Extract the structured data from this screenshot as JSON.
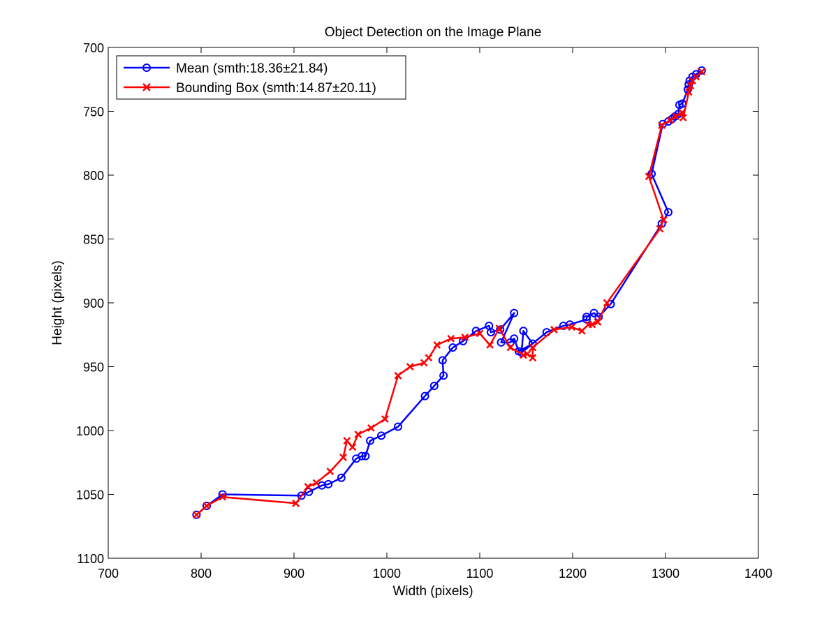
{
  "chart_data": {
    "type": "line",
    "title": "Object Detection on the Image Plane",
    "xlabel": "Width (pixels)",
    "ylabel": "Height (pixels)",
    "xlim": [
      700,
      1400
    ],
    "ylim": [
      700,
      1100
    ],
    "y_reversed": true,
    "xticks": [
      700,
      800,
      900,
      1000,
      1100,
      1200,
      1300,
      1400
    ],
    "yticks": [
      700,
      750,
      800,
      850,
      900,
      950,
      1000,
      1050,
      1100
    ],
    "grid": false,
    "legend_position": "top-left",
    "series": [
      {
        "name": "Mean (smth:18.36±21.84)",
        "color": "#0000ff",
        "marker": "circle",
        "points": [
          [
            795,
            1066
          ],
          [
            806,
            1059
          ],
          [
            823,
            1050
          ],
          [
            908,
            1051
          ],
          [
            916,
            1048
          ],
          [
            930,
            1043
          ],
          [
            937,
            1042
          ],
          [
            951,
            1037
          ],
          [
            967,
            1022
          ],
          [
            973,
            1020
          ],
          [
            977,
            1020
          ],
          [
            982,
            1008
          ],
          [
            994,
            1004
          ],
          [
            1012,
            997
          ],
          [
            1041,
            973
          ],
          [
            1051,
            965
          ],
          [
            1061,
            957
          ],
          [
            1060,
            945
          ],
          [
            1071,
            935
          ],
          [
            1082,
            930
          ],
          [
            1096,
            922
          ],
          [
            1110,
            918
          ],
          [
            1112,
            923
          ],
          [
            1122,
            921
          ],
          [
            1137,
            908
          ],
          [
            1123,
            931
          ],
          [
            1133,
            931
          ],
          [
            1137,
            928
          ],
          [
            1142,
            938
          ],
          [
            1157,
            932
          ],
          [
            1147,
            922
          ],
          [
            1145,
            939
          ],
          [
            1172,
            923
          ],
          [
            1190,
            918
          ],
          [
            1197,
            917
          ],
          [
            1215,
            913
          ],
          [
            1215,
            911
          ],
          [
            1223,
            908
          ],
          [
            1228,
            911
          ],
          [
            1241,
            901
          ],
          [
            1296,
            838
          ],
          [
            1303,
            829
          ],
          [
            1285,
            799
          ],
          [
            1297,
            760
          ],
          [
            1303,
            758
          ],
          [
            1307,
            756
          ],
          [
            1310,
            754
          ],
          [
            1314,
            752
          ],
          [
            1315,
            745
          ],
          [
            1318,
            744
          ],
          [
            1324,
            733
          ],
          [
            1325,
            729
          ],
          [
            1326,
            726
          ],
          [
            1329,
            723
          ],
          [
            1333,
            721
          ],
          [
            1339,
            718
          ]
        ]
      },
      {
        "name": "Bounding Box (smth:14.87±20.11)",
        "color": "#ff0000",
        "marker": "x",
        "points": [
          [
            795,
            1066
          ],
          [
            806,
            1059
          ],
          [
            823,
            1052
          ],
          [
            902,
            1057
          ],
          [
            915,
            1044
          ],
          [
            924,
            1041
          ],
          [
            939,
            1032
          ],
          [
            953,
            1021
          ],
          [
            957,
            1008
          ],
          [
            963,
            1013
          ],
          [
            969,
            1003
          ],
          [
            983,
            998
          ],
          [
            998,
            991
          ],
          [
            1012,
            957
          ],
          [
            1025,
            950
          ],
          [
            1040,
            947
          ],
          [
            1045,
            943
          ],
          [
            1054,
            933
          ],
          [
            1069,
            928
          ],
          [
            1084,
            927
          ],
          [
            1100,
            924
          ],
          [
            1111,
            933
          ],
          [
            1121,
            920
          ],
          [
            1133,
            935
          ],
          [
            1147,
            941
          ],
          [
            1151,
            940
          ],
          [
            1157,
            943
          ],
          [
            1157,
            935
          ],
          [
            1180,
            921
          ],
          [
            1199,
            919
          ],
          [
            1210,
            922
          ],
          [
            1217,
            917
          ],
          [
            1221,
            917
          ],
          [
            1227,
            915
          ],
          [
            1237,
            900
          ],
          [
            1294,
            842
          ],
          [
            1298,
            835
          ],
          [
            1282,
            801
          ],
          [
            1296,
            761
          ],
          [
            1305,
            757
          ],
          [
            1311,
            754
          ],
          [
            1318,
            751
          ],
          [
            1319,
            755
          ],
          [
            1325,
            735
          ],
          [
            1327,
            730
          ],
          [
            1329,
            726
          ],
          [
            1333,
            723
          ],
          [
            1339,
            719
          ]
        ]
      }
    ]
  }
}
